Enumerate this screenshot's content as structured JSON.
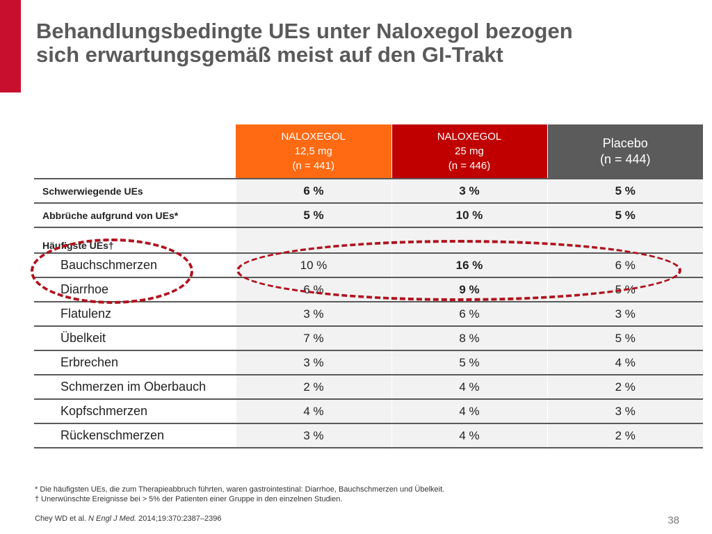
{
  "title": {
    "line1": "Behandlungsbedingte UEs unter Naloxegol bezogen",
    "line2": "sich erwartungsgemäß meist auf den GI-Trakt"
  },
  "colors": {
    "accent_red": "#c8102e",
    "naloxegol_12": "#ff6a13",
    "naloxegol_25": "#c00000",
    "placebo": "#5b5b5b",
    "highlight_dash": "#b0121e"
  },
  "table": {
    "headers": [
      {
        "line1": "NALOXEGOL",
        "line2": "12,5 mg",
        "line3": "(n = 441)"
      },
      {
        "line1": "NALOXEGOL",
        "line2": "25 mg",
        "line3": "(n = 446)"
      },
      {
        "line1": "Placebo",
        "line2": "(n = 444)"
      }
    ],
    "rows": [
      {
        "label": "Schwerwiegende UEs",
        "values": [
          "6 %",
          "3 %",
          "5 %"
        ]
      },
      {
        "label": "Abbrüche aufgrund von UEs*",
        "values": [
          "5 %",
          "10 %",
          "5 %"
        ]
      },
      {
        "label": "Häufigste UEs†",
        "values": [
          "",
          "",
          ""
        ]
      },
      {
        "label": "Bauchschmerzen",
        "values": [
          "10 %",
          "16 %",
          "6 %"
        ]
      },
      {
        "label": "Diarrhoe",
        "values": [
          "6 %",
          "9 %",
          "5 %"
        ]
      },
      {
        "label": "Flatulenz",
        "values": [
          "3 %",
          "6 %",
          "3 %"
        ]
      },
      {
        "label": "Übelkeit",
        "values": [
          "7 %",
          "8 %",
          "5 %"
        ]
      },
      {
        "label": "Erbrechen",
        "values": [
          "3 %",
          "5 %",
          "4 %"
        ]
      },
      {
        "label": "Schmerzen im Oberbauch",
        "values": [
          "2 %",
          "4 %",
          "2 %"
        ]
      },
      {
        "label": "Kopfschmerzen",
        "values": [
          "4 %",
          "4 %",
          "3 %"
        ]
      },
      {
        "label": "Rückenschmerzen",
        "values": [
          "3 %",
          "4 %",
          "2 %"
        ]
      }
    ]
  },
  "footnotes": {
    "star": "*  Die häufigsten UEs, die zum Therapieabbruch führten, waren gastrointestinal: Diarrhoe, Bauchschmerzen und Übelkeit.",
    "dagger": "†  Unerwünschte Ereignisse bei > 5% der Patienten einer Gruppe in den einzelnen Studien."
  },
  "citation": {
    "authors": "Chey WD et al. ",
    "journal": "N Engl J Med.",
    "details": " 2014;19:370:2387–2396"
  },
  "page_number": "38"
}
